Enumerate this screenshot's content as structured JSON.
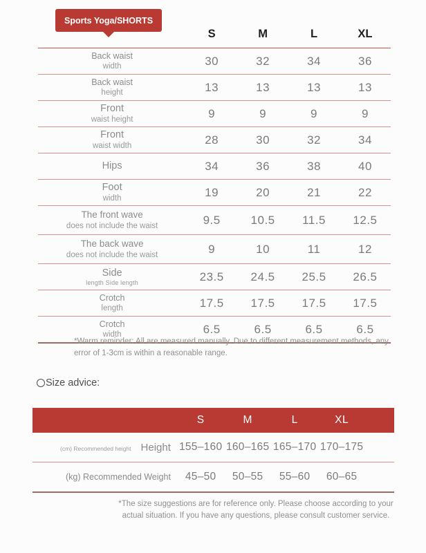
{
  "badge": {
    "label": "Sports Yoga/SHORTS"
  },
  "size_table": {
    "columns": [
      "S",
      "M",
      "L",
      "XL"
    ],
    "rows": [
      {
        "label": "Back waist",
        "sub": "width",
        "values": [
          "30",
          "32",
          "34",
          "36"
        ]
      },
      {
        "label": "Back waist",
        "sub": "height",
        "values": [
          "13",
          "13",
          "13",
          "13"
        ]
      },
      {
        "label": "Front",
        "sub": "waist height",
        "values": [
          "9",
          "9",
          "9",
          "9"
        ]
      },
      {
        "label": "Front",
        "sub": "waist width",
        "values": [
          "28",
          "30",
          "32",
          "34"
        ]
      },
      {
        "label": "Hips",
        "sub": "",
        "values": [
          "34",
          "36",
          "38",
          "40"
        ]
      },
      {
        "label": "Foot",
        "sub": "width",
        "values": [
          "19",
          "20",
          "21",
          "22"
        ]
      },
      {
        "label": "The front wave",
        "sub": "does not include the waist",
        "values": [
          "9.5",
          "10.5",
          "11.5",
          "12.5"
        ]
      },
      {
        "label": "The back wave",
        "sub": "does not include the waist",
        "values": [
          "9",
          "10",
          "11",
          "12"
        ]
      },
      {
        "label": "Side",
        "sub": "length Side length",
        "values": [
          "23.5",
          "24.5",
          "25.5",
          "26.5"
        ]
      },
      {
        "label": "Crotch",
        "sub": "length",
        "values": [
          "17.5",
          "17.5",
          "17.5",
          "17.5"
        ]
      },
      {
        "label": "Crotch",
        "sub": "width",
        "values": [
          "6.5",
          "6.5",
          "6.5",
          "6.5"
        ]
      }
    ],
    "reminder": "*Warm reminder: All are measured manually. Due to different measurement methods, any error of 1-3cm is within a reasonable range."
  },
  "size_advice": {
    "heading": "Size advice:",
    "columns": [
      "S",
      "M",
      "L",
      "XL"
    ],
    "rows": [
      {
        "label_small": "(cm) Recommended height",
        "label": "Height",
        "values": [
          "155–160",
          "160–165",
          "165–170",
          "170–175"
        ]
      },
      {
        "label_small": "",
        "label": "(kg) Recommended Weight",
        "values": [
          "45–50",
          "50–55",
          "55–60",
          "60–65"
        ]
      }
    ],
    "footnote": "*The size suggestions are for reference only. Please choose according to your actual situation. If you have any questions, please consult customer service."
  },
  "colors": {
    "accent_red": "#b93a33",
    "row_line": "#d5928b",
    "heavy_line": "#9f6a60"
  }
}
